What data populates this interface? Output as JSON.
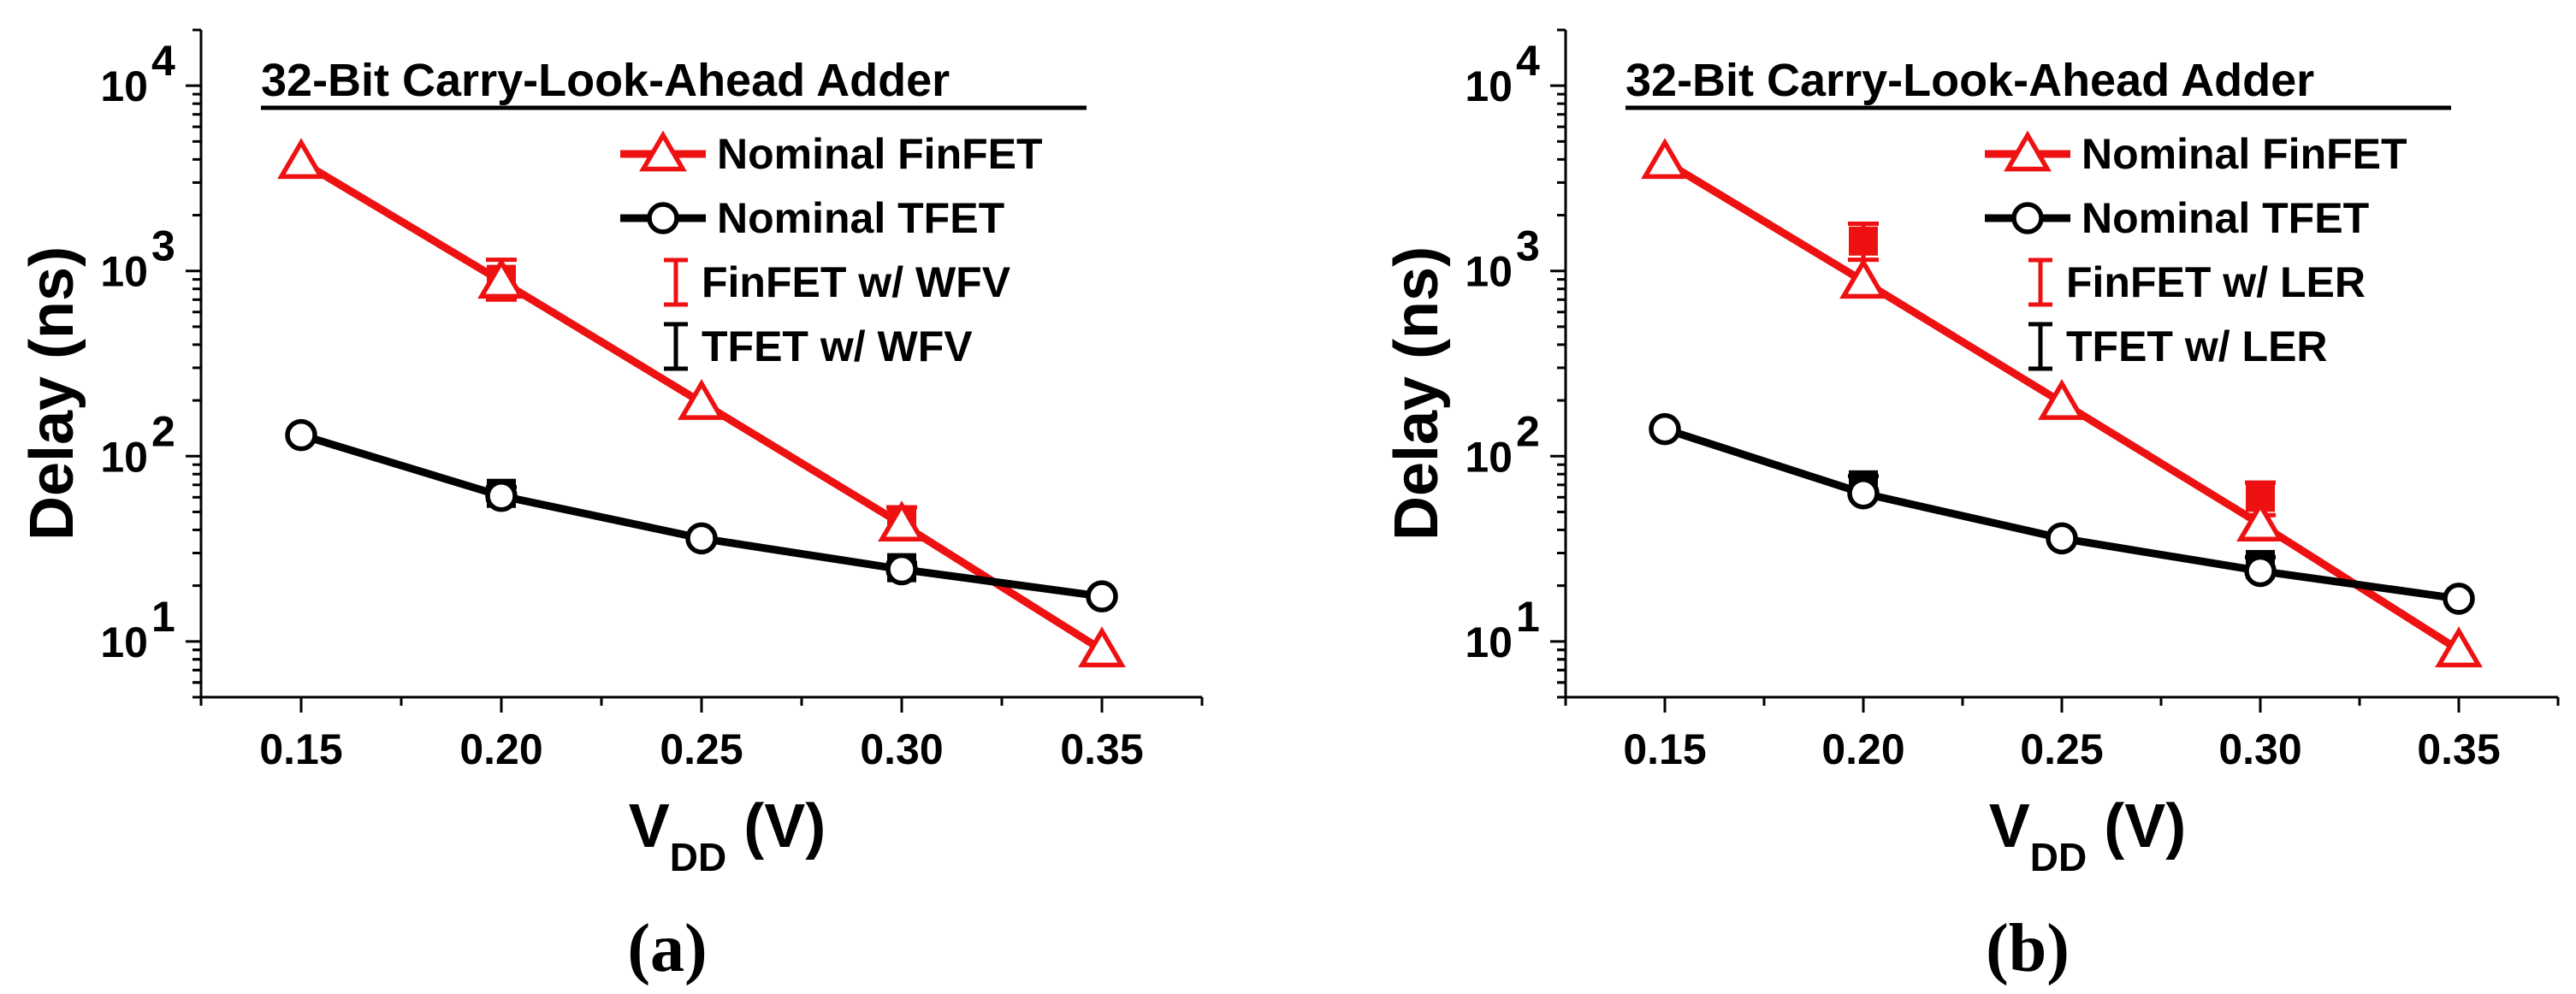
{
  "figure": {
    "colors": {
      "finfet": "#ee1111",
      "tfet": "#000000"
    }
  },
  "chart_data": [
    {
      "type": "line",
      "panel_label": "(a)",
      "title": "32-Bit Carry-Look-Ahead Adder",
      "xlabel": "V",
      "xlabel_sub": "DD",
      "xlabel_unit": " (V)",
      "ylabel": "Delay (ns)",
      "yscale": "log",
      "xlim": [
        0.125,
        0.375
      ],
      "ylim": [
        5,
        20000
      ],
      "x_ticks": [
        0.15,
        0.2,
        0.25,
        0.3,
        0.35
      ],
      "x_tick_labels": [
        "0.15",
        "0.20",
        "0.25",
        "0.30",
        "0.35"
      ],
      "y_ticks": [
        10,
        100,
        1000,
        10000
      ],
      "y_tick_labels": [
        {
          "base": "10",
          "exp": "1"
        },
        {
          "base": "10",
          "exp": "2"
        },
        {
          "base": "10",
          "exp": "3"
        },
        {
          "base": "10",
          "exp": "4"
        }
      ],
      "legend_position": "top-right",
      "series": [
        {
          "name": "Nominal FinFET",
          "kind": "line",
          "marker": "triangle",
          "color": "#ee1111",
          "x": [
            0.15,
            0.2,
            0.25,
            0.3,
            0.35
          ],
          "y": [
            3900,
            880,
            195,
            43,
            9
          ]
        },
        {
          "name": "Nominal TFET",
          "kind": "line",
          "marker": "circle",
          "color": "#000000",
          "x": [
            0.15,
            0.2,
            0.25,
            0.3,
            0.35
          ],
          "y": [
            130,
            61,
            36,
            24.5,
            17.5
          ]
        },
        {
          "name": "FinFET w/ WFV",
          "kind": "errorbar",
          "color": "#ee1111",
          "x": [
            0.2,
            0.3
          ],
          "y": [
            900,
            45
          ],
          "err_low": [
            700,
            38
          ],
          "err_high": [
            1150,
            53
          ]
        },
        {
          "name": "TFET w/ WFV",
          "kind": "errorbar",
          "color": "#000000",
          "x": [
            0.2,
            0.3
          ],
          "y": [
            63,
            25
          ],
          "err_low": [
            58,
            23.5
          ],
          "err_high": [
            68,
            26.5
          ]
        }
      ]
    },
    {
      "type": "line",
      "panel_label": "(b)",
      "title": "32-Bit Carry-Look-Ahead Adder",
      "xlabel": "V",
      "xlabel_sub": "DD",
      "xlabel_unit": " (V)",
      "ylabel": "Delay (ns)",
      "yscale": "log",
      "xlim": [
        0.125,
        0.375
      ],
      "ylim": [
        5,
        20000
      ],
      "x_ticks": [
        0.15,
        0.2,
        0.25,
        0.3,
        0.35
      ],
      "x_tick_labels": [
        "0.15",
        "0.20",
        "0.25",
        "0.30",
        "0.35"
      ],
      "y_ticks": [
        10,
        100,
        1000,
        10000
      ],
      "y_tick_labels": [
        {
          "base": "10",
          "exp": "1"
        },
        {
          "base": "10",
          "exp": "2"
        },
        {
          "base": "10",
          "exp": "3"
        },
        {
          "base": "10",
          "exp": "4"
        }
      ],
      "legend_position": "top-right",
      "series": [
        {
          "name": "Nominal FinFET",
          "kind": "line",
          "marker": "triangle",
          "color": "#ee1111",
          "x": [
            0.15,
            0.2,
            0.25,
            0.3,
            0.35
          ],
          "y": [
            3900,
            880,
            195,
            43,
            9
          ]
        },
        {
          "name": "Nominal TFET",
          "kind": "line",
          "marker": "circle",
          "color": "#000000",
          "x": [
            0.15,
            0.2,
            0.25,
            0.3,
            0.35
          ],
          "y": [
            140,
            63,
            36,
            24,
            17
          ]
        },
        {
          "name": "FinFET w/ LER",
          "kind": "errorbar",
          "color": "#ee1111",
          "x": [
            0.2,
            0.3
          ],
          "y": [
            1450,
            60
          ],
          "err_low": [
            1150,
            48
          ],
          "err_high": [
            1800,
            72
          ]
        },
        {
          "name": "TFET w/ LER",
          "kind": "errorbar",
          "color": "#000000",
          "x": [
            0.2,
            0.3
          ],
          "y": [
            70,
            26
          ],
          "err_low": [
            62,
            24
          ],
          "err_high": [
            78,
            28.5
          ]
        }
      ]
    }
  ]
}
